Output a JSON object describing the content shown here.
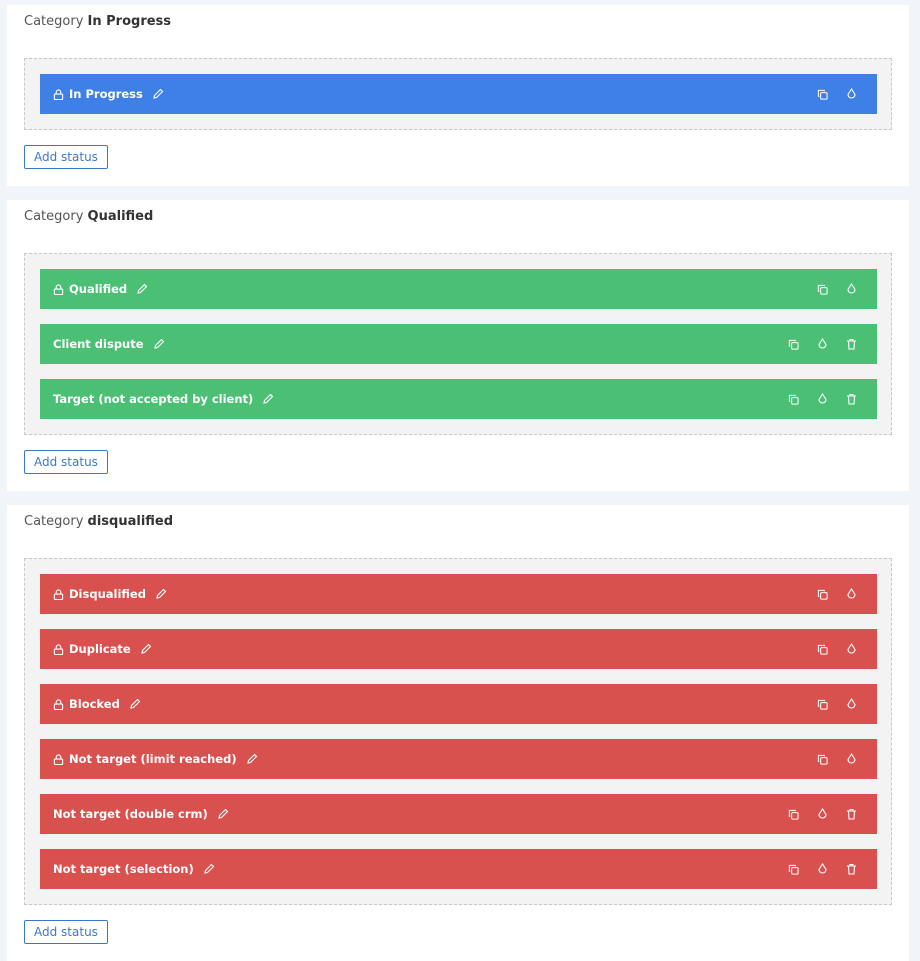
{
  "category_prefix": "Category",
  "add_status_label": "Add status",
  "colors": {
    "in_progress": "#3f80e6",
    "qualified": "#4bc075",
    "disqualified": "#d9514e"
  },
  "categories": [
    {
      "name": "In Progress",
      "color": "#3f80e6",
      "statuses": [
        {
          "label": "In Progress",
          "locked": true
        }
      ]
    },
    {
      "name": "Qualified",
      "color": "#4bc075",
      "statuses": [
        {
          "label": "Qualified",
          "locked": true
        },
        {
          "label": "Client dispute",
          "locked": false
        },
        {
          "label": "Target (not accepted by client)",
          "locked": false
        }
      ]
    },
    {
      "name": "disqualified",
      "color": "#d9514e",
      "statuses": [
        {
          "label": "Disqualified",
          "locked": true
        },
        {
          "label": "Duplicate",
          "locked": true
        },
        {
          "label": "Blocked",
          "locked": true
        },
        {
          "label": "Not target (limit reached)",
          "locked": true
        },
        {
          "label": "Not target (double crm)",
          "locked": false
        },
        {
          "label": "Not target (selection)",
          "locked": false
        }
      ]
    }
  ]
}
